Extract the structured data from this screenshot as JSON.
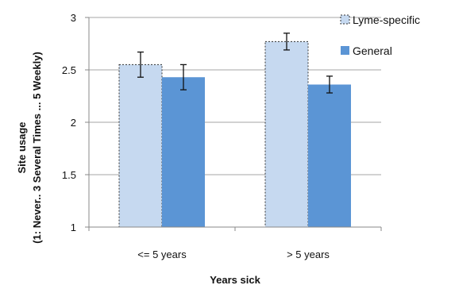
{
  "chart_data": {
    "type": "bar",
    "title": "",
    "xlabel": "Years sick",
    "ylabel": "Site usage",
    "ylabel_line2": "(1: Never.. 3 Several Times ... 5 Weekly)",
    "categories": [
      "<= 5 years",
      "> 5 years"
    ],
    "ylim": [
      1,
      3
    ],
    "yticks": [
      "1",
      "1.5",
      "2",
      "2.5",
      "3"
    ],
    "grid": true,
    "legend_position": "top-right",
    "series": [
      {
        "name": "Lyme-specific",
        "values": [
          2.55,
          2.77
        ],
        "errors": [
          0.12,
          0.08
        ],
        "color": "#c6d9f0",
        "border": "dashed"
      },
      {
        "name": "General",
        "values": [
          2.43,
          2.36
        ],
        "errors": [
          0.12,
          0.08
        ],
        "color": "#5b95d5",
        "border": "none"
      }
    ]
  }
}
